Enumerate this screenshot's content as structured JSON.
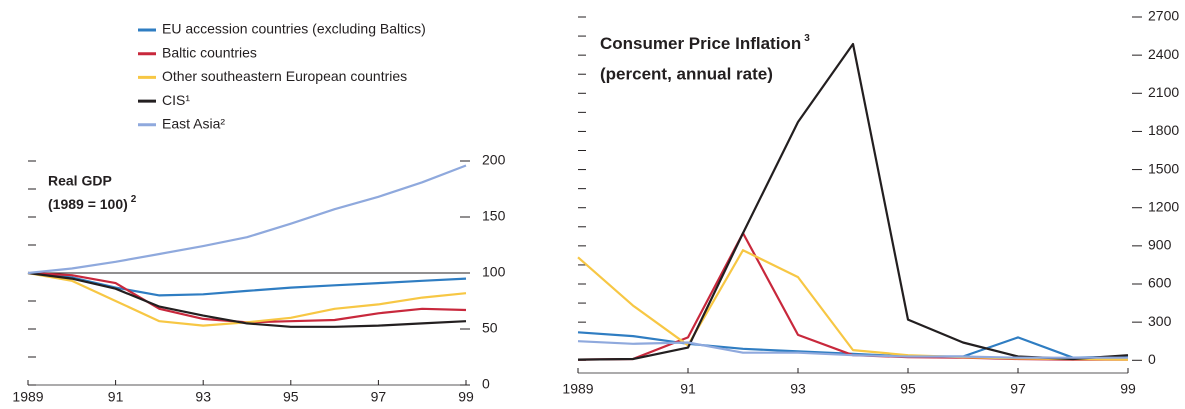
{
  "chart_data": [
    {
      "type": "line",
      "title": "Real GDP",
      "subtitle": "(1989 = 100)",
      "subtitle_note": "2",
      "x": [
        1989,
        1990,
        1991,
        1992,
        1993,
        1994,
        1995,
        1996,
        1997,
        1998,
        1999
      ],
      "xlim": [
        1989,
        1999
      ],
      "xticks": [
        1989,
        {
          "value": 1991,
          "label": "91"
        },
        {
          "value": 1993,
          "label": "93"
        },
        {
          "value": 1995,
          "label": "95"
        },
        {
          "value": 1997,
          "label": "97"
        },
        {
          "value": 1999,
          "label": "99"
        }
      ],
      "ylim": [
        0,
        200
      ],
      "yticks": [
        0,
        50,
        100,
        150,
        200
      ],
      "yminor_ticks": [
        25,
        75,
        125,
        175
      ],
      "hline": 100,
      "legend": "top",
      "series": [
        {
          "name": "EU accession countries (excluding Baltics)",
          "color": "#2f7dc2",
          "values": [
            100,
            96,
            87,
            80,
            81,
            84,
            87,
            89,
            91,
            93,
            95
          ]
        },
        {
          "name": "Baltic countries",
          "color": "#c8283c",
          "values": [
            100,
            98,
            91,
            68,
            59,
            56,
            57,
            58,
            64,
            68,
            67
          ]
        },
        {
          "name": "Other southeastern European countries",
          "color": "#f7c744",
          "values": [
            100,
            93,
            75,
            57,
            53,
            56,
            60,
            68,
            72,
            78,
            82
          ]
        },
        {
          "name": "CIS¹",
          "color": "#231f20",
          "values": [
            100,
            95,
            86,
            70,
            62,
            55,
            52,
            52,
            53,
            55,
            57
          ]
        },
        {
          "name": "East Asia²",
          "color": "#8fa9dd",
          "values": [
            100,
            104,
            110,
            117,
            124,
            132,
            144,
            157,
            168,
            181,
            196
          ]
        }
      ]
    },
    {
      "type": "line",
      "title": "Consumer Price Inflation",
      "title_note": "3",
      "subtitle": "(percent, annual rate)",
      "x": [
        1989,
        1990,
        1991,
        1992,
        1993,
        1994,
        1995,
        1996,
        1997,
        1998,
        1999
      ],
      "xlim": [
        1989,
        1999
      ],
      "xticks": [
        1989,
        {
          "value": 1991,
          "label": "91"
        },
        {
          "value": 1993,
          "label": "93"
        },
        {
          "value": 1995,
          "label": "95"
        },
        {
          "value": 1997,
          "label": "97"
        },
        {
          "value": 1999,
          "label": "99"
        }
      ],
      "ylim": [
        -100,
        2700
      ],
      "yticks": [
        0,
        300,
        600,
        900,
        1200,
        1500,
        1800,
        2100,
        2400,
        2700
      ],
      "yminor_ticks": [
        150,
        450,
        750,
        1050,
        1350,
        1650,
        1950,
        2250,
        2550
      ],
      "series": [
        {
          "color": "#2f7dc2",
          "values": [
            220,
            190,
            130,
            90,
            70,
            50,
            30,
            30,
            180,
            20,
            30
          ]
        },
        {
          "color": "#c8283c",
          "values": [
            5,
            10,
            180,
            1000,
            200,
            40,
            25,
            20,
            10,
            5,
            5
          ]
        },
        {
          "color": "#f7c744",
          "values": [
            810,
            430,
            118,
            866,
            654,
            80,
            40,
            25,
            15,
            10,
            5
          ]
        },
        {
          "color": "#231f20",
          "values": [
            5,
            10,
            100,
            1000,
            1874,
            2488,
            320,
            140,
            30,
            10,
            40
          ]
        },
        {
          "color": "#8fa9dd",
          "values": [
            150,
            130,
            140,
            60,
            60,
            40,
            30,
            30,
            20,
            20,
            20
          ]
        }
      ]
    }
  ]
}
